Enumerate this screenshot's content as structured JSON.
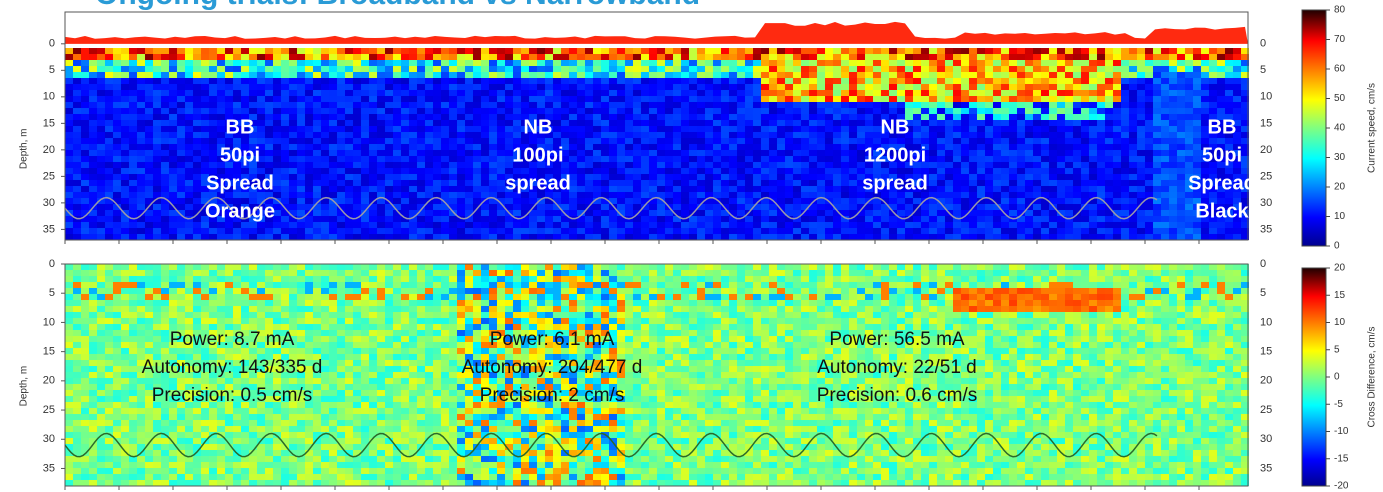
{
  "title": "Ongoing trials: Broadband vs Narrowband",
  "chart_data": [
    {
      "type": "heatmap",
      "ylabel": "Depth, m",
      "ylim": [
        -6,
        37
      ],
      "yticks": [
        0,
        5,
        10,
        15,
        20,
        25,
        30,
        35
      ],
      "colorbar": {
        "label": "Current speed, cm/s",
        "lim": [
          0,
          80
        ],
        "ticks": [
          0,
          10,
          20,
          30,
          40,
          50,
          60,
          70,
          80
        ]
      },
      "annotations": [
        [
          "BB",
          "50pi",
          "Spread",
          "Orange"
        ],
        [
          "NB",
          "100pi",
          "spread"
        ],
        [
          "NB",
          "1200pi",
          "spread"
        ],
        [
          "BB",
          "50pi",
          "Spread",
          "Black"
        ]
      ]
    },
    {
      "type": "heatmap",
      "ylabel": "Depth, m",
      "ylim": [
        0,
        38
      ],
      "yticks": [
        0,
        5,
        10,
        15,
        20,
        25,
        30,
        35
      ],
      "colorbar": {
        "label": "Cross Difference, cm/s",
        "lim": [
          -20,
          20
        ],
        "ticks": [
          -20,
          -15,
          -10,
          -5,
          0,
          5,
          10,
          15,
          20
        ]
      },
      "annotations": [
        [
          "Power: 8.7 mA",
          "Autonomy: 143/335 d",
          "Precision: 0.5 cm/s"
        ],
        [
          "Power: 6.1 mA",
          "Autonomy: 204/477 d",
          "Precision: 2 cm/s"
        ],
        [
          "Power: 56.5 mA",
          "Autonomy: 22/51 d",
          "Precision: 0.6 cm/s"
        ]
      ]
    }
  ]
}
